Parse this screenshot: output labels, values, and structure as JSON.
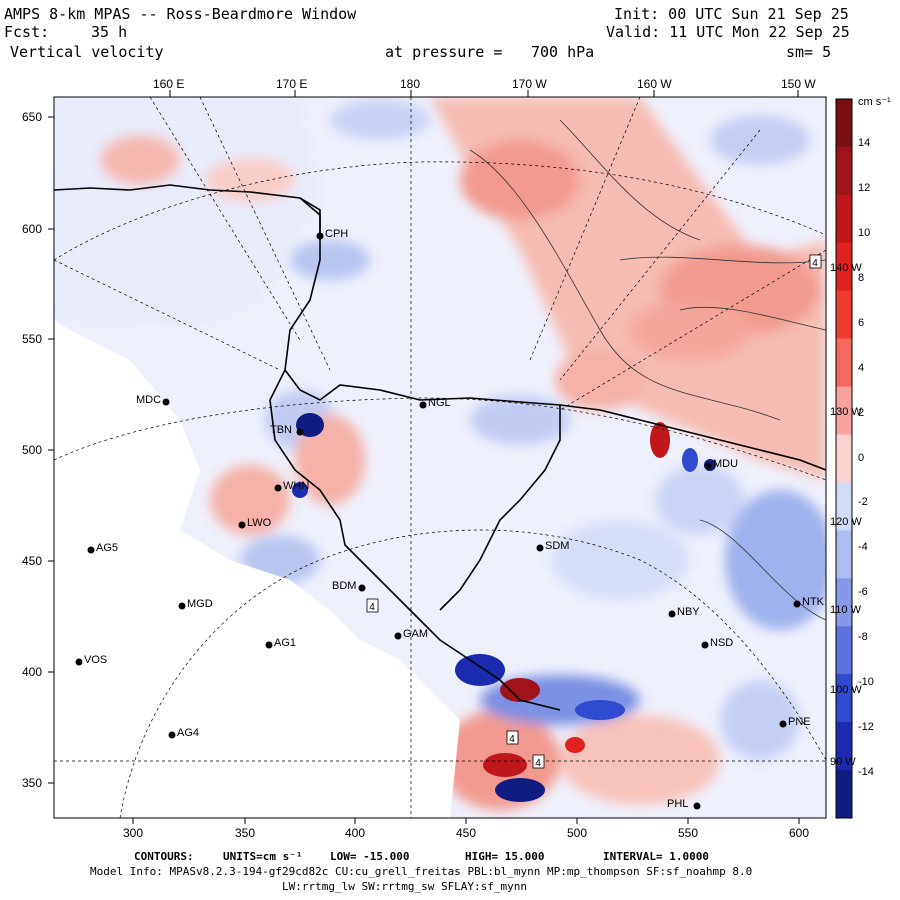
{
  "header": {
    "model_title": "AMPS 8-km MPAS -- Ross-Beardmore Window",
    "init_time": "Init: 00 UTC Sun 21 Sep 25",
    "fcst_label": "Fcst:",
    "fcst_hours": "35 h",
    "valid_time": "Valid: 11 UTC Mon 22 Sep 25",
    "field_name": "Vertical velocity",
    "pressure_label": "at pressure =",
    "pressure_value": "700 hPa",
    "smoothing": "sm= 5"
  },
  "axes": {
    "top_lon_labels": [
      "160 E",
      "170 E",
      "180",
      "170 W",
      "160 W",
      "150 W"
    ],
    "right_lon_labels": [
      "140 W",
      "130 W",
      "120 W",
      "110 W",
      "100 W",
      "90 W"
    ],
    "y_ticks": [
      "650",
      "600",
      "550",
      "500",
      "450",
      "400",
      "350"
    ],
    "x_ticks": [
      "300",
      "350",
      "400",
      "450",
      "500",
      "550",
      "600"
    ]
  },
  "colorbar": {
    "units": "cm s⁻¹",
    "labels": [
      "14",
      "12",
      "10",
      "8",
      "6",
      "4",
      "2",
      "0",
      "-2",
      "-4",
      "-6",
      "-8",
      "-10",
      "-12",
      "-14"
    ],
    "colors": [
      "#7a0f12",
      "#9e1418",
      "#c0171a",
      "#e0221f",
      "#f03c2f",
      "#f46a5e",
      "#f7a29a",
      "#fbd2cd",
      "#d3dcf7",
      "#aebdf0",
      "#8599e6",
      "#5a72dc",
      "#2f4bd0",
      "#1b2bb0",
      "#101c80"
    ]
  },
  "stations": [
    {
      "code": "CPH"
    },
    {
      "code": "MDC"
    },
    {
      "code": "NGL"
    },
    {
      "code": "TBN"
    },
    {
      "code": "WHN"
    },
    {
      "code": "LWO"
    },
    {
      "code": "AG5"
    },
    {
      "code": "SDM"
    },
    {
      "code": "BDM"
    },
    {
      "code": "MGD"
    },
    {
      "code": "NBY"
    },
    {
      "code": "NTK"
    },
    {
      "code": "NSD"
    },
    {
      "code": "AG1"
    },
    {
      "code": "GAM"
    },
    {
      "code": "VOS"
    },
    {
      "code": "AG4"
    },
    {
      "code": "PNE"
    },
    {
      "code": "PHL"
    },
    {
      "code": "MDU"
    }
  ],
  "contour_labels": [
    "4",
    "4",
    "4",
    "4"
  ],
  "footer": {
    "contours_label": "CONTOURS:",
    "units": "UNITS=cm s⁻¹",
    "low": "LOW= -15.000",
    "high": "HIGH= 15.000",
    "interval": "INTERVAL= 1.0000",
    "model_info": "Model Info: MPASv8.2.3-194-gf29cd82c CU:cu_grell_freitas PBL:bl_mynn MP:mp_thompson SF:sf_noahmp 8.0",
    "model_info_2": "LW:rrtmg_lw SW:rrtmg_sw SFLAY:sf_mynn"
  }
}
